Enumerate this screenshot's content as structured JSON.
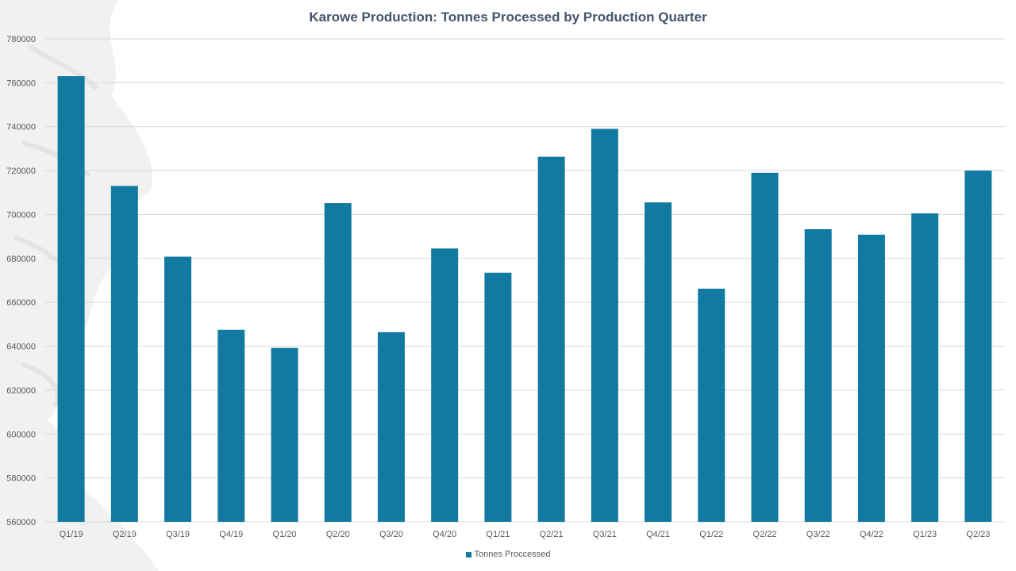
{
  "chart_data": {
    "type": "bar",
    "title": "Karowe Production: Tonnes Processed by Production Quarter",
    "xlabel": "",
    "ylabel": "",
    "categories": [
      "Q1/19",
      "Q2/19",
      "Q3/19",
      "Q4/19",
      "Q1/20",
      "Q2/20",
      "Q3/20",
      "Q4/20",
      "Q1/21",
      "Q2/21",
      "Q3/21",
      "Q4/21",
      "Q1/22",
      "Q2/22",
      "Q3/22",
      "Q4/22",
      "Q1/23",
      "Q2/23"
    ],
    "series": [
      {
        "name": "Tonnes Proccessed",
        "color": "#1279a0",
        "values": [
          763000,
          713000,
          680800,
          647500,
          639200,
          705200,
          646400,
          684500,
          673500,
          726300,
          739000,
          705500,
          666200,
          719000,
          693300,
          690800,
          700500,
          720000
        ]
      }
    ],
    "ylim": [
      560000,
      780000
    ],
    "yticks": [
      "560000",
      "580000",
      "600000",
      "620000",
      "640000",
      "660000",
      "680000",
      "700000",
      "720000",
      "740000",
      "760000",
      "780000"
    ],
    "grid": true,
    "legend_position": "bottom"
  }
}
